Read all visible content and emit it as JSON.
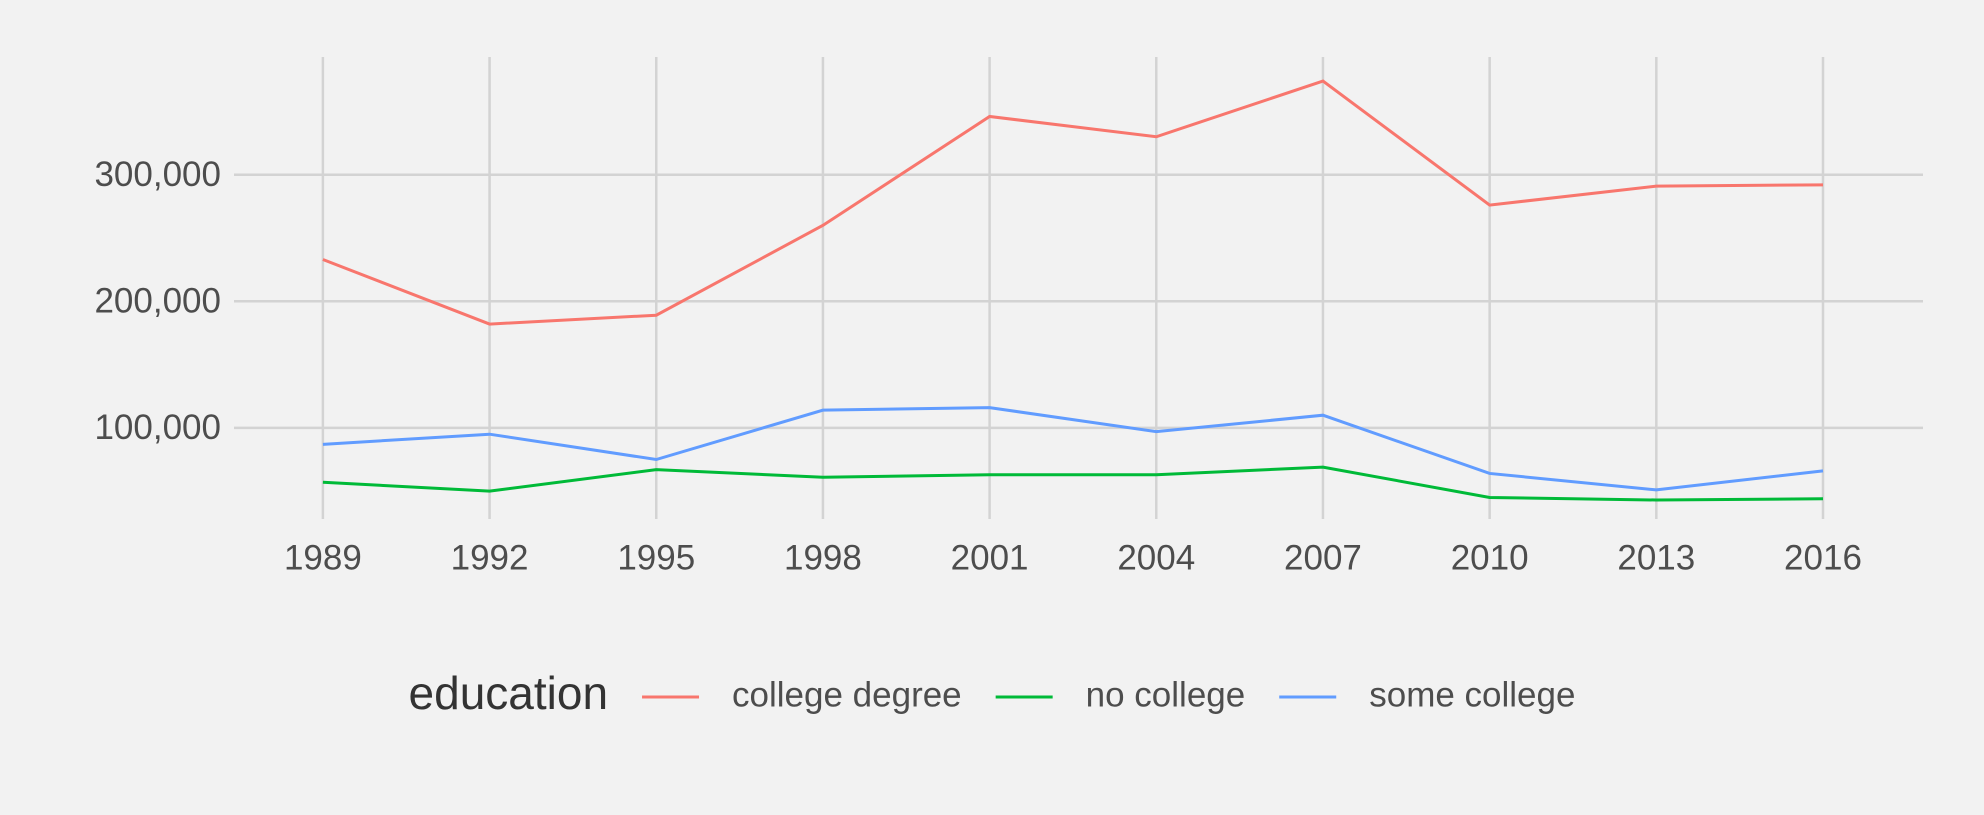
{
  "chart_data": {
    "type": "line",
    "x": [
      1989,
      1992,
      1995,
      1998,
      2001,
      2004,
      2007,
      2010,
      2013,
      2016
    ],
    "series": [
      {
        "name": "college degree",
        "color": "#f8766d",
        "values": [
          233000,
          182000,
          189000,
          260000,
          346000,
          330000,
          374000,
          276000,
          291000,
          292000
        ]
      },
      {
        "name": "no college",
        "color": "#00ba38",
        "values": [
          57000,
          50000,
          67000,
          61000,
          63000,
          63000,
          69000,
          45000,
          43000,
          44000
        ]
      },
      {
        "name": "some college",
        "color": "#619cff",
        "values": [
          87000,
          95000,
          75000,
          114000,
          116000,
          97000,
          110000,
          64000,
          51000,
          66000
        ]
      }
    ],
    "legend_title": "education",
    "xlim": [
      1987.4,
      2017.8
    ],
    "xticks": [
      1989,
      1992,
      1995,
      1998,
      2001,
      2004,
      2007,
      2010,
      2013,
      2016
    ],
    "ylim": [
      28000,
      393000
    ],
    "yticks": [
      {
        "value": 100000,
        "label": "100,000"
      },
      {
        "value": 200000,
        "label": "200,000"
      },
      {
        "value": 300000,
        "label": "300,000"
      }
    ],
    "grid": true,
    "legend_position": "bottom"
  }
}
